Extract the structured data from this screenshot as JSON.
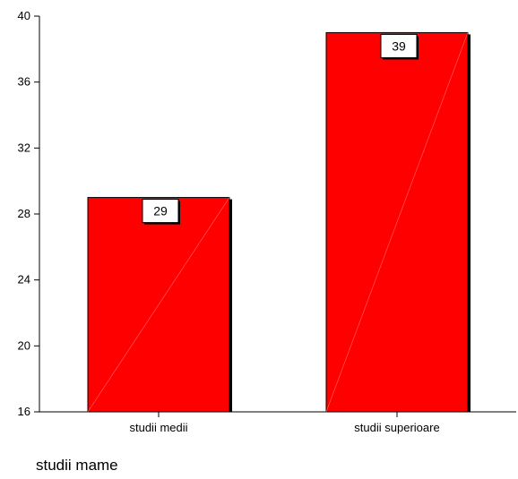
{
  "chart_data": {
    "type": "bar",
    "categories": [
      "studii medii",
      "studii superioare"
    ],
    "values": [
      29,
      39
    ],
    "data_labels": [
      "29",
      "39"
    ],
    "yticks": [
      "16",
      "20",
      "24",
      "28",
      "32",
      "36",
      "40"
    ],
    "ylim": [
      16,
      40
    ],
    "xlabel": "studii mame",
    "ylabel": "",
    "title": "",
    "grid": false,
    "bar_color": "#ff0000",
    "bar_edge_color": "#000000"
  }
}
